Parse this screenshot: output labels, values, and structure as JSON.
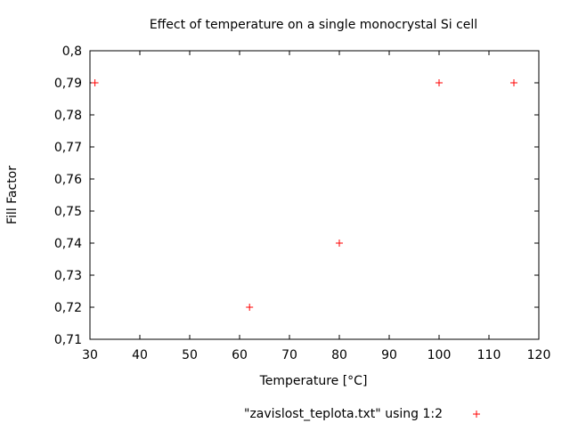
{
  "chart_data": {
    "type": "scatter",
    "title": "Effect of temperature on a single monocrystal Si cell",
    "xlabel": "Temperature [°C]",
    "ylabel": "Fill Factor",
    "xlim": [
      30,
      120
    ],
    "ylim": [
      0.71,
      0.8
    ],
    "xticks": [
      "30",
      "40",
      "50",
      "60",
      "70",
      "80",
      "90",
      "100",
      "110",
      "120"
    ],
    "yticks": [
      "0,71",
      "0,72",
      "0,73",
      "0,74",
      "0,75",
      "0,76",
      "0,77",
      "0,78",
      "0,79",
      "0,8"
    ],
    "grid": false,
    "legend_position": "bottom",
    "series": [
      {
        "name": "\"zavislost_teplota.txt\" using 1:2",
        "color": "#ff0000",
        "marker": "plus",
        "x": [
          31,
          62,
          80,
          100,
          115
        ],
        "y": [
          0.79,
          0.72,
          0.74,
          0.79,
          0.79
        ]
      }
    ]
  }
}
